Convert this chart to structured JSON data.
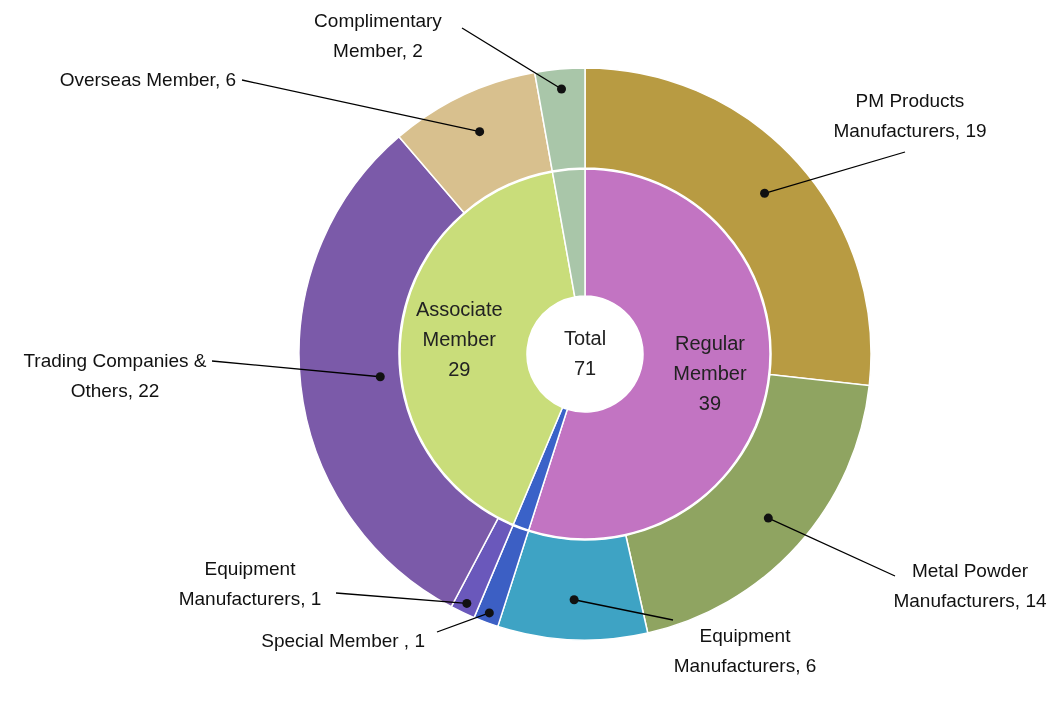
{
  "chart_data": [
    {
      "type": "donut",
      "categories": [
        "PM Products Manufacturers, 19",
        "Metal Powder Manufacturers, 14",
        "Equipment Manufacturers, 6",
        "Special Member , 1",
        "Equipment Manufacturers, 1",
        "Trading Companies & Others, 22",
        "Overseas Member, 6",
        "Complimentary Member, 2"
      ],
      "values": [
        19,
        14,
        6,
        1,
        1,
        22,
        6,
        2
      ],
      "colors": [
        "#b89b42",
        "#8fa461",
        "#3ea3c4",
        "#3c5fc4",
        "#6a58bb",
        "#7b5aa9",
        "#d8c08e",
        "#a9c6a9"
      ]
    },
    {
      "type": "donut",
      "categories": [
        "Regular Member 39",
        null,
        "Associate Member 29",
        null
      ],
      "values": [
        39,
        1,
        29,
        2
      ],
      "colors": [
        "#c274c2",
        "#3a62c8",
        "#c9dd7a",
        "#a9c6a9"
      ],
      "annotations": [
        "Total 71"
      ]
    }
  ]
}
